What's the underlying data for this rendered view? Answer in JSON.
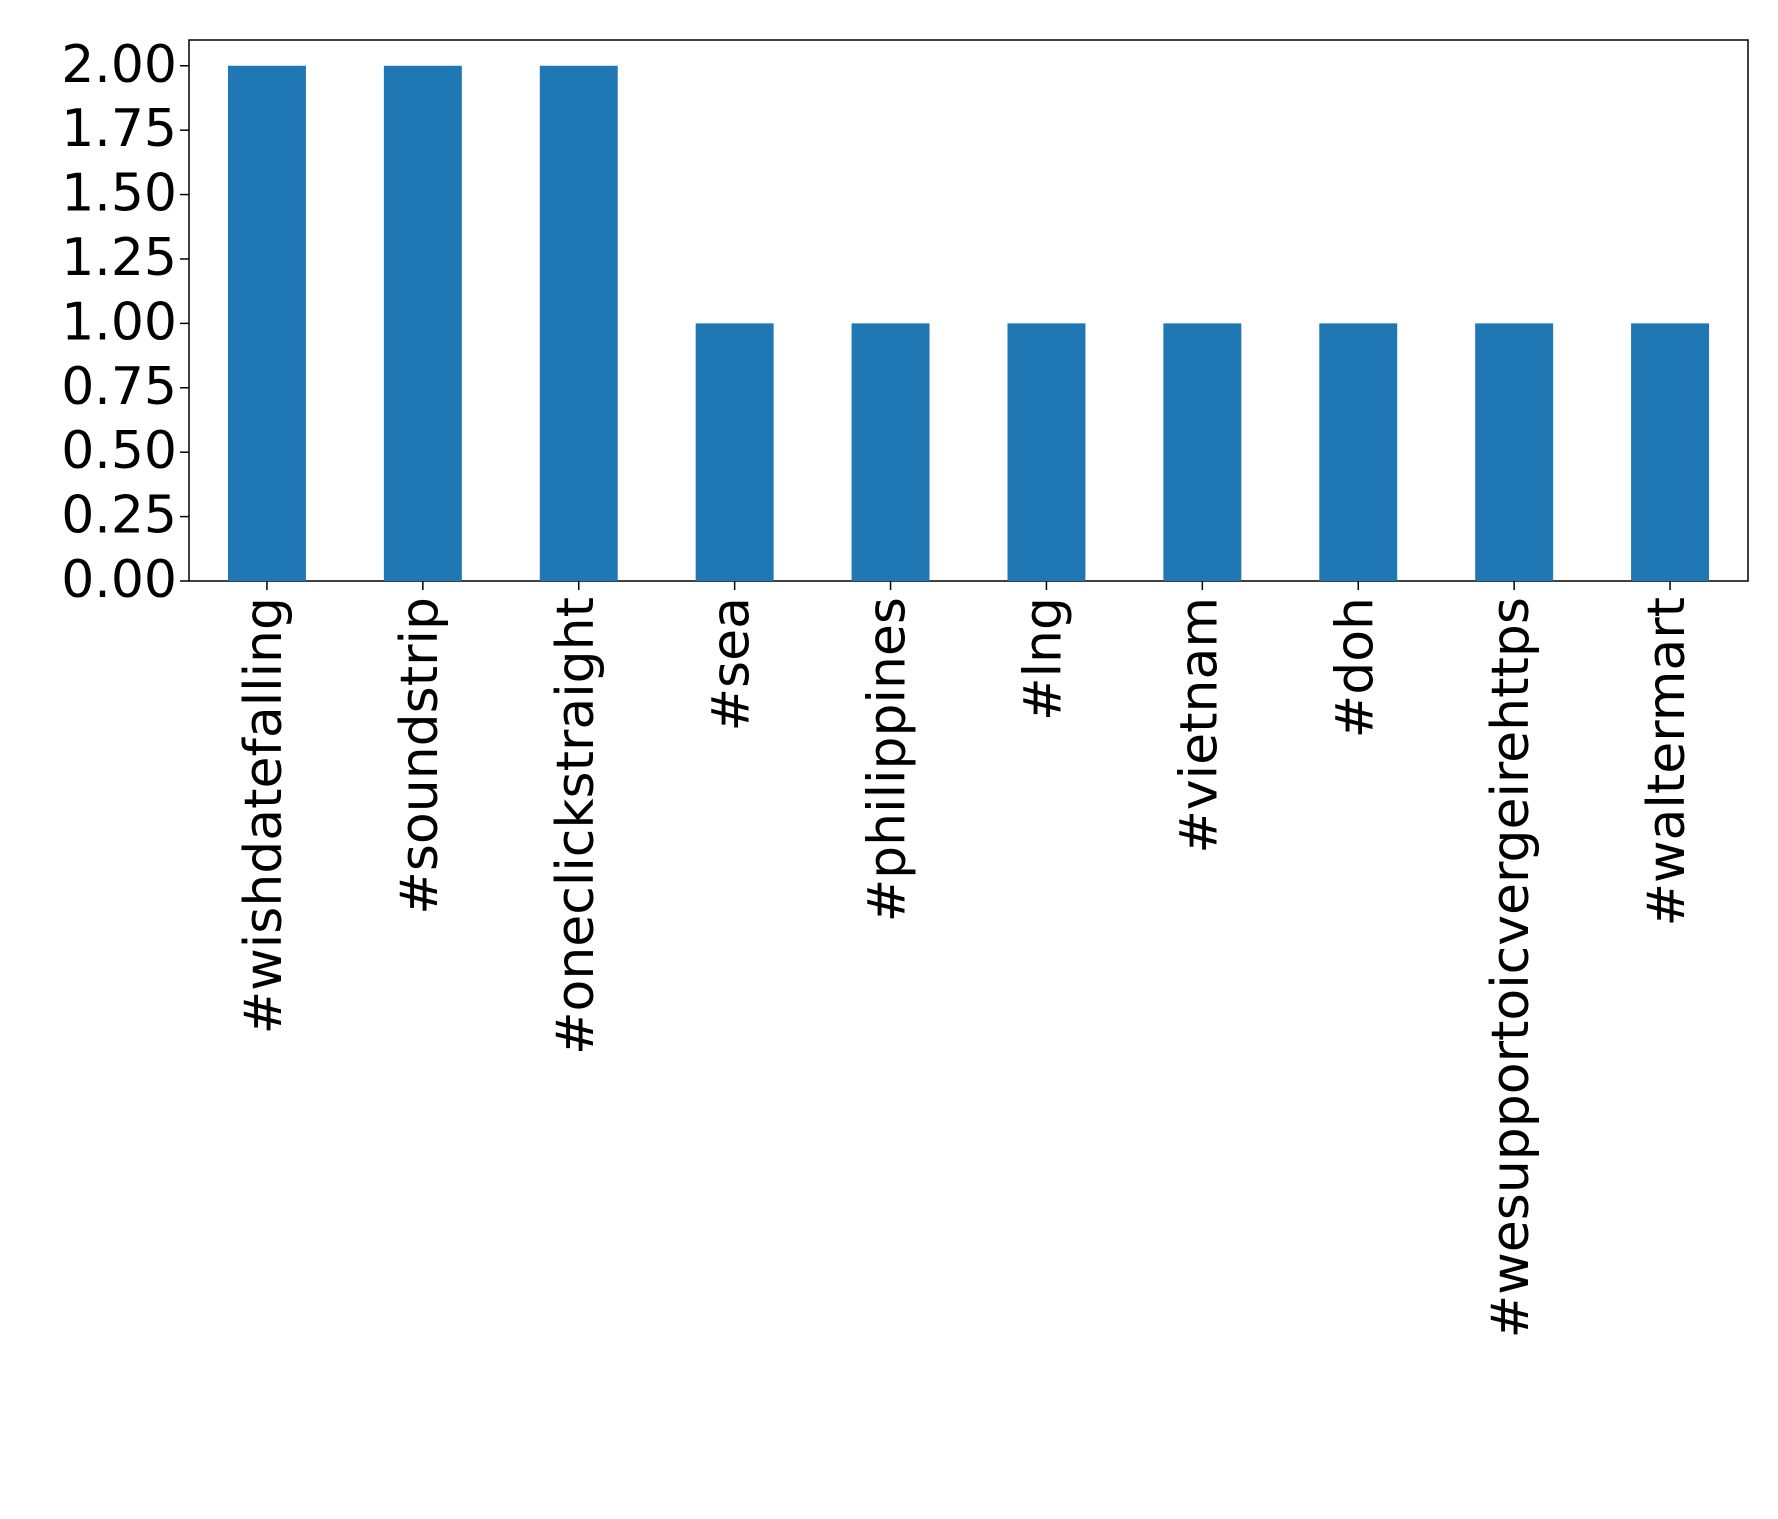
{
  "chart_data": {
    "type": "bar",
    "categories": [
      "#wishdatefalling",
      "#soundstrip",
      "#oneclickstraight",
      "#sea",
      "#philippines",
      "#lng",
      "#vietnam",
      "#doh",
      "#wesupportoicvergeirehttps",
      "#waltermart"
    ],
    "values": [
      2,
      2,
      2,
      1,
      1,
      1,
      1,
      1,
      1,
      1
    ],
    "color": "#1f77b4",
    "ylim": [
      0,
      2.1
    ],
    "yticks": [
      {
        "value": 0,
        "label": "0.00"
      },
      {
        "value": 0.25,
        "label": "0.25"
      },
      {
        "value": 0.5,
        "label": "0.50"
      },
      {
        "value": 0.75,
        "label": "0.75"
      },
      {
        "value": 1,
        "label": "1.00"
      },
      {
        "value": 1.25,
        "label": "1.25"
      },
      {
        "value": 1.5,
        "label": "1.50"
      },
      {
        "value": 1.75,
        "label": "1.75"
      },
      {
        "value": 2,
        "label": "2.00"
      }
    ],
    "grid": false
  }
}
